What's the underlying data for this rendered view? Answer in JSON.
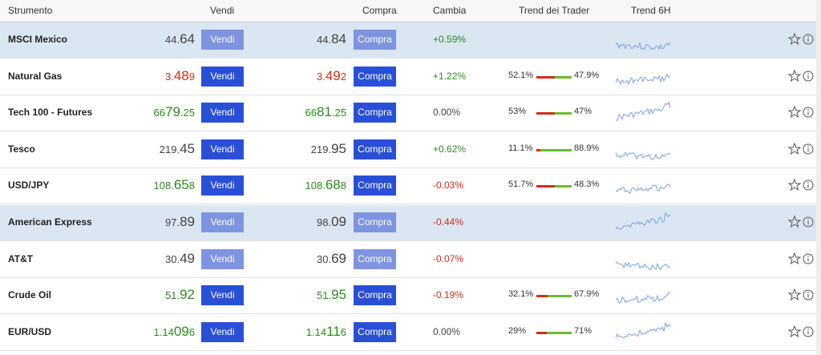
{
  "header": {
    "instrument": "Strumento",
    "sell": "Vendi",
    "buy": "Compra",
    "change": "Cambia",
    "trader_trend": "Trend dei Trader",
    "trend_6h": "Trend 6H"
  },
  "buttons": {
    "sell": "Vendi",
    "buy": "Compra"
  },
  "rows": [
    {
      "name": "MSCI Mexico",
      "highlight": true,
      "active": false,
      "dir": "neutral",
      "sell": {
        "pre": "44.",
        "main": "64"
      },
      "buy": {
        "pre": "44.",
        "main": "84"
      },
      "change": "+0.59%",
      "change_dir": "up"
    },
    {
      "name": "Natural Gas",
      "highlight": false,
      "active": true,
      "dir": "down",
      "sell": {
        "pre": "3.",
        "main": "48",
        "post": "9"
      },
      "buy": {
        "pre": "3.",
        "main": "49",
        "post": "2"
      },
      "change": "+1.22%",
      "change_dir": "up",
      "trend": {
        "sell": {
          "value": 52.1,
          "label": "52.1%"
        },
        "buy": {
          "value": 47.9,
          "label": "47.9%"
        }
      }
    },
    {
      "name": "Tech 100 - Futures",
      "highlight": false,
      "active": true,
      "dir": "up",
      "sell": {
        "pre": "66",
        "main": "79",
        "post": ".25"
      },
      "buy": {
        "pre": "66",
        "main": "81",
        "post": ".25"
      },
      "change": "0.00%",
      "change_dir": "neutral",
      "trend": {
        "sell": {
          "value": 53,
          "label": "53%"
        },
        "buy": {
          "value": 47,
          "label": "47%"
        }
      }
    },
    {
      "name": "Tesco",
      "highlight": false,
      "active": true,
      "dir": "neutral",
      "sell": {
        "pre": "219.",
        "main": "45"
      },
      "buy": {
        "pre": "219.",
        "main": "95"
      },
      "change": "+0.62%",
      "change_dir": "up",
      "trend": {
        "sell": {
          "value": 11.1,
          "label": "11.1%"
        },
        "buy": {
          "value": 88.9,
          "label": "88.9%"
        }
      }
    },
    {
      "name": "USD/JPY",
      "highlight": false,
      "active": true,
      "dir": "up",
      "sell": {
        "pre": "108.",
        "main": "65",
        "post": "8"
      },
      "buy": {
        "pre": "108.",
        "main": "68",
        "post": "8"
      },
      "change": "-0.03%",
      "change_dir": "down",
      "trend": {
        "sell": {
          "value": 51.7,
          "label": "51.7%"
        },
        "buy": {
          "value": 48.3,
          "label": "48.3%"
        }
      }
    },
    {
      "name": "American Express",
      "highlight": true,
      "active": false,
      "dir": "neutral",
      "sell": {
        "pre": "97.",
        "main": "89"
      },
      "buy": {
        "pre": "98.",
        "main": "09"
      },
      "change": "-0.44%",
      "change_dir": "down"
    },
    {
      "name": "AT&T",
      "highlight": false,
      "active": false,
      "dir": "neutral",
      "sell": {
        "pre": "30.",
        "main": "49"
      },
      "buy": {
        "pre": "30.",
        "main": "69"
      },
      "change": "-0.07%",
      "change_dir": "down"
    },
    {
      "name": "Crude Oil",
      "highlight": false,
      "active": true,
      "dir": "up",
      "sell": {
        "pre": "51.",
        "main": "92"
      },
      "buy": {
        "pre": "51.",
        "main": "95"
      },
      "change": "-0.19%",
      "change_dir": "down",
      "trend": {
        "sell": {
          "value": 32.1,
          "label": "32.1%"
        },
        "buy": {
          "value": 67.9,
          "label": "67.9%"
        }
      }
    },
    {
      "name": "EUR/USD",
      "highlight": false,
      "active": true,
      "dir": "up",
      "sell": {
        "pre": "1.14",
        "main": "09",
        "post": "6"
      },
      "buy": {
        "pre": "1.14",
        "main": "11",
        "post": "6"
      },
      "change": "0.00%",
      "change_dir": "neutral",
      "trend": {
        "sell": {
          "value": 29,
          "label": "29%"
        },
        "buy": {
          "value": 71,
          "label": "71%"
        }
      }
    }
  ]
}
